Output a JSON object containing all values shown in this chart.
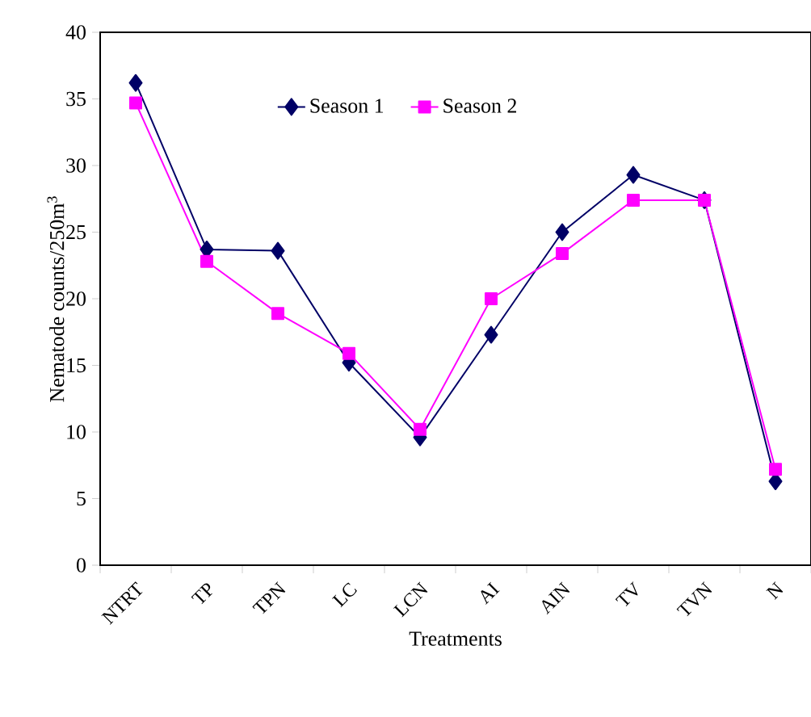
{
  "chart_data": {
    "type": "line",
    "xlabel": "Treatments",
    "ylabel": "Nematode counts/250m$^{3}$",
    "categories": [
      "NTRT",
      "TP",
      "TPN",
      "LC",
      "LCN",
      "AI",
      "AIN",
      "TV",
      "TVN",
      "N"
    ],
    "series": [
      {
        "name": "Season 1",
        "color": "#000066",
        "marker": "diamond",
        "values": [
          36.2,
          23.7,
          23.6,
          15.2,
          9.6,
          17.3,
          25.0,
          29.3,
          27.4,
          6.3
        ]
      },
      {
        "name": "Season 2",
        "color": "#ff00ff",
        "marker": "square",
        "values": [
          34.7,
          22.8,
          18.9,
          15.9,
          10.2,
          20.0,
          23.4,
          27.4,
          27.4,
          7.2
        ]
      }
    ],
    "ylim": [
      0,
      40
    ],
    "yticks": [
      0,
      5,
      10,
      15,
      20,
      25,
      30,
      35,
      40
    ],
    "legend": "top",
    "grid": false
  }
}
